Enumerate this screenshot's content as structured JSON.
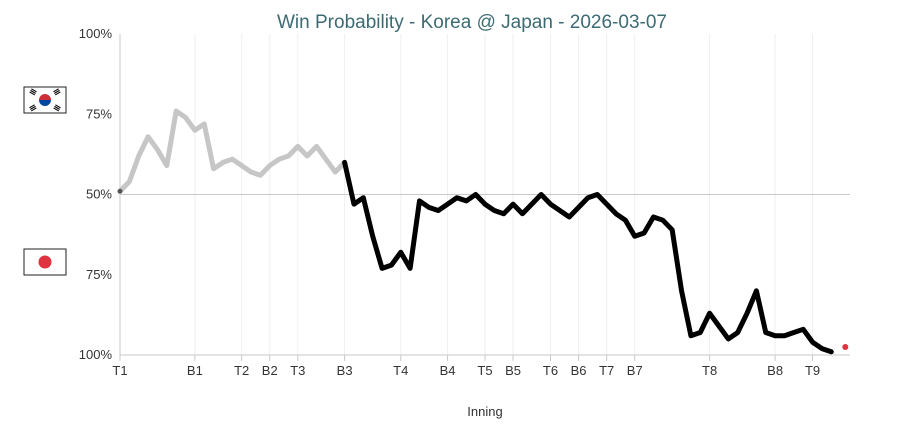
{
  "chart_data": {
    "type": "line",
    "title": "Win Probability - Korea @ Japan - 2026-03-07",
    "xlabel": "Inning",
    "ylabel": "",
    "teams": {
      "top": {
        "flag": "korea-flag",
        "colors": {
          "red": "#cd2e3a",
          "blue": "#0047a0",
          "black": "#000000"
        }
      },
      "bottom": {
        "flag": "japan-flag",
        "colors": {
          "red": "#e0333f"
        }
      }
    },
    "y_ticks": [
      "100%",
      "75%",
      "50%",
      "75%",
      "100%"
    ],
    "y_tick_values": [
      100,
      75,
      50,
      25,
      0
    ],
    "ylim": [
      0,
      100
    ],
    "xlim": [
      0,
      78
    ],
    "x_ticks": [
      {
        "label": "T1",
        "x": 0
      },
      {
        "label": "B1",
        "x": 8
      },
      {
        "label": "T2",
        "x": 13
      },
      {
        "label": "B2",
        "x": 16
      },
      {
        "label": "T3",
        "x": 19
      },
      {
        "label": "B3",
        "x": 24
      },
      {
        "label": "T4",
        "x": 30
      },
      {
        "label": "B4",
        "x": 35
      },
      {
        "label": "T5",
        "x": 39
      },
      {
        "label": "B5",
        "x": 42
      },
      {
        "label": "T6",
        "x": 46
      },
      {
        "label": "B6",
        "x": 49
      },
      {
        "label": "T7",
        "x": 52
      },
      {
        "label": "B7",
        "x": 55
      },
      {
        "label": "T8",
        "x": 63
      },
      {
        "label": "B8",
        "x": 70
      },
      {
        "label": "T9",
        "x": 74
      }
    ],
    "grid": true,
    "series": [
      {
        "values": [
          51,
          54,
          62,
          68,
          64,
          59,
          76,
          74,
          70,
          72,
          58,
          60,
          61,
          59,
          57,
          56,
          59,
          61,
          62,
          65,
          62,
          65,
          61,
          57,
          60,
          47,
          49,
          37,
          27,
          28,
          32,
          27,
          48,
          46,
          45,
          47,
          49,
          48,
          50,
          47,
          45,
          44,
          47,
          44,
          47,
          50,
          47,
          45,
          43,
          46,
          49,
          50,
          47,
          44,
          42,
          37,
          38,
          43,
          42,
          39,
          20,
          6,
          7,
          13,
          9,
          5,
          7,
          13,
          20,
          7,
          6,
          6,
          7,
          8,
          4,
          2,
          1
        ],
        "highlight_from_index": 24,
        "faded_color": "#c6c6c6",
        "color": "#000000"
      }
    ],
    "end_marker": {
      "x": 77.5,
      "y": 2.5,
      "color": "#e0333f"
    }
  }
}
